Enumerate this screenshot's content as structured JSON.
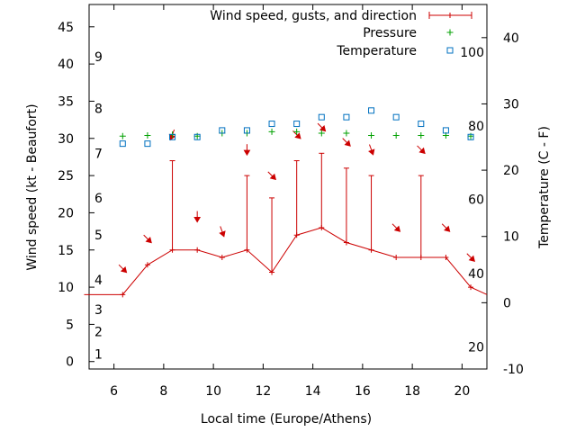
{
  "chart_data": {
    "type": "line",
    "xlabel": "Local time (Europe/Athens)",
    "ylabel": "Wind speed (kt - Beaufort)",
    "y2label": "Temperature (C - F)",
    "xlim": [
      5,
      21
    ],
    "ylim": [
      -1,
      48
    ],
    "y2lim": [
      -10,
      45
    ],
    "xticks": [
      "6",
      "8",
      "10",
      "12",
      "14",
      "16",
      "18",
      "20"
    ],
    "yticks": [
      "0",
      "5",
      "10",
      "15",
      "20",
      "25",
      "30",
      "35",
      "40",
      "45"
    ],
    "y2ticks": [
      "-10",
      "0",
      "10",
      "20",
      "30",
      "40"
    ],
    "beaufort_labels": [
      {
        "label": "1",
        "wind": 1
      },
      {
        "label": "2",
        "wind": 4
      },
      {
        "label": "3",
        "wind": 7
      },
      {
        "label": "4",
        "wind": 11
      },
      {
        "label": "5",
        "wind": 17
      },
      {
        "label": "6",
        "wind": 22
      },
      {
        "label": "7",
        "wind": 28
      },
      {
        "label": "8",
        "wind": 34
      },
      {
        "label": "9",
        "wind": 41
      }
    ],
    "fahrenheit_labels": [
      {
        "label": "20",
        "temp": -6.7
      },
      {
        "label": "40",
        "temp": 4.4
      },
      {
        "label": "60",
        "temp": 15.6
      },
      {
        "label": "80",
        "temp": 26.7
      },
      {
        "label": "100",
        "temp": 37.8
      }
    ],
    "legend": [
      {
        "label": "Wind speed, gusts, and direction",
        "color": "#cc0000",
        "symbol": "errorbar"
      },
      {
        "label": "Pressure",
        "color": "#00a000",
        "symbol": "plus"
      },
      {
        "label": "Temperature",
        "color": "#0070c0",
        "symbol": "square"
      }
    ],
    "series": [
      {
        "name": "Wind speed",
        "color": "#cc0000",
        "x": [
          4.8,
          6.35,
          7.35,
          8.35,
          9.35,
          10.35,
          11.35,
          12.35,
          13.35,
          14.35,
          15.35,
          16.35,
          17.35,
          18.35,
          19.35,
          20.35,
          21.0
        ],
        "y": [
          9,
          9,
          13,
          15,
          15,
          14,
          15,
          12,
          17,
          18,
          16,
          15,
          14,
          14,
          14,
          10,
          9
        ]
      },
      {
        "name": "Gusts",
        "color": "#cc0000",
        "x": [
          8.35,
          11.35,
          12.35,
          13.35,
          14.35,
          15.35,
          16.35,
          18.35
        ],
        "base": [
          15,
          15,
          12,
          17,
          18,
          16,
          15,
          14
        ],
        "top": [
          27,
          25,
          22,
          27,
          28,
          26,
          25,
          25
        ]
      },
      {
        "name": "Direction",
        "color": "#cc0000",
        "x": [
          6.35,
          7.35,
          8.35,
          9.35,
          10.35,
          11.35,
          12.35,
          13.35,
          14.35,
          15.35,
          16.35,
          17.35,
          18.35,
          19.35,
          20.35
        ],
        "y": [
          12.5,
          16.5,
          30.5,
          19.5,
          17.5,
          28.5,
          25.0,
          30.5,
          31.5,
          29.5,
          28.5,
          18.0,
          28.5,
          18.0,
          14.0
        ],
        "direction_deg": [
          315,
          315,
          20,
          0,
          340,
          0,
          315,
          315,
          315,
          315,
          340,
          315,
          315,
          315,
          315
        ]
      },
      {
        "name": "Pressure",
        "color": "#00a000",
        "x": [
          6.35,
          7.35,
          8.35,
          9.35,
          10.35,
          11.35,
          12.35,
          13.35,
          14.35,
          15.35,
          16.35,
          17.35,
          18.35,
          19.35,
          20.35
        ],
        "y": [
          30.3,
          30.4,
          30.5,
          30.3,
          30.7,
          30.7,
          30.9,
          30.9,
          30.7,
          30.7,
          30.4,
          30.4,
          30.4,
          30.4,
          30.3
        ]
      },
      {
        "name": "Temperature",
        "color": "#0070c0",
        "x": [
          6.35,
          7.35,
          8.35,
          9.35,
          10.35,
          11.35,
          12.35,
          13.35,
          14.35,
          15.35,
          16.35,
          17.35,
          18.35,
          19.35,
          20.35
        ],
        "y": [
          24,
          24,
          25,
          25,
          26,
          26,
          27,
          27,
          28,
          28,
          29,
          28,
          27,
          26,
          25
        ]
      }
    ]
  }
}
